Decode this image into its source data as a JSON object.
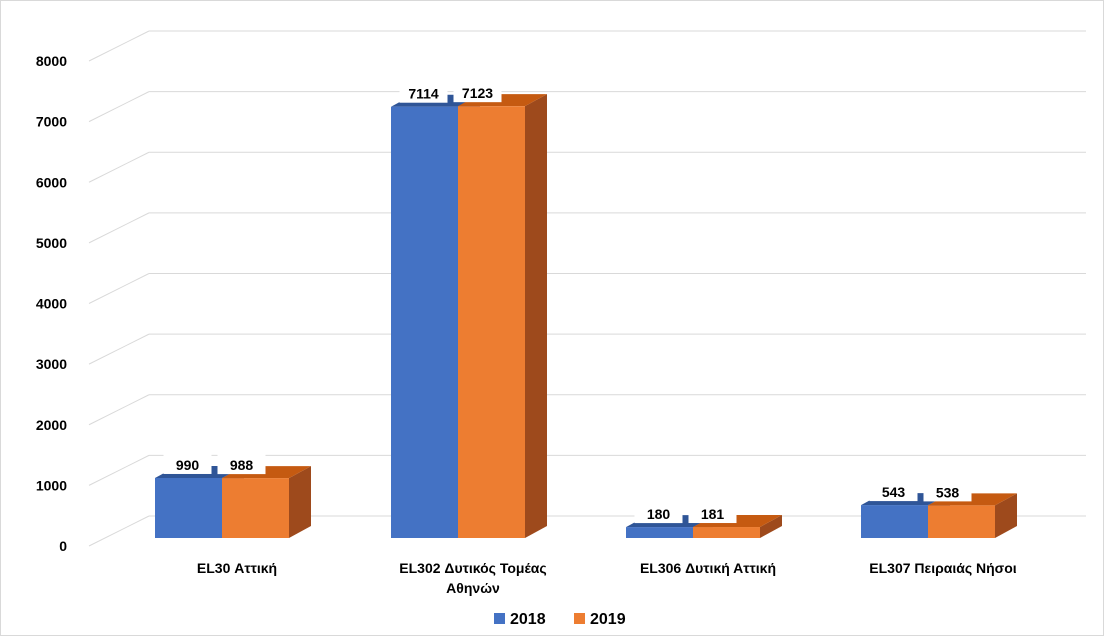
{
  "chart_data": {
    "type": "bar",
    "style": "3d-clustered-column",
    "title": "",
    "xlabel": "",
    "ylabel": "",
    "categories": [
      [
        "EL30 Αττική"
      ],
      [
        "EL302 Δυτικός Τομέας",
        "Αθηνών"
      ],
      [
        "EL306 Δυτική Αττική"
      ],
      [
        "EL307 Πειραιάς Νήσοι"
      ]
    ],
    "series": [
      {
        "name": "2018",
        "values": [
          990,
          7114,
          180,
          543
        ],
        "color": "#4472C4",
        "top_color": "#2F5597",
        "side_color": "#2F5597"
      },
      {
        "name": "2019",
        "values": [
          988,
          7123,
          181,
          538
        ],
        "color": "#ED7D31",
        "top_color": "#C55A11",
        "side_color": "#9E4A1C"
      }
    ],
    "ylim": [
      0,
      8000
    ],
    "yticks": [
      0,
      1000,
      2000,
      3000,
      4000,
      5000,
      6000,
      7000,
      8000
    ],
    "data_labels": true,
    "grid": true,
    "legend_position": "bottom"
  }
}
